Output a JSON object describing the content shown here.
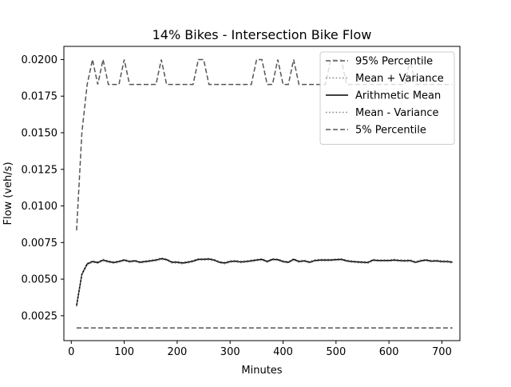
{
  "chart_data": {
    "type": "line",
    "title": "14% Bikes - Intersection Bike Flow",
    "xlabel": "Minutes",
    "ylabel": "Flow (veh/s)",
    "xlim": [
      -14,
      734
    ],
    "ylim": [
      0.0008,
      0.0209
    ],
    "x_ticks": [
      0,
      100,
      200,
      300,
      400,
      500,
      600,
      700
    ],
    "y_ticks": [
      0.0025,
      0.005,
      0.0075,
      0.01,
      0.0125,
      0.015,
      0.0175,
      0.02
    ],
    "x_tick_labels": [
      "0",
      "100",
      "200",
      "300",
      "400",
      "500",
      "600",
      "700"
    ],
    "y_tick_labels": [
      "0.0025",
      "0.0050",
      "0.0075",
      "0.0100",
      "0.0125",
      "0.0150",
      "0.0175",
      "0.0200"
    ],
    "grid": false,
    "legend_position": "top-right",
    "x": [
      10,
      20,
      30,
      40,
      50,
      60,
      70,
      80,
      90,
      100,
      110,
      120,
      130,
      140,
      150,
      160,
      170,
      180,
      190,
      200,
      210,
      220,
      230,
      240,
      250,
      260,
      270,
      280,
      290,
      300,
      310,
      320,
      330,
      340,
      350,
      360,
      370,
      380,
      390,
      400,
      410,
      420,
      430,
      440,
      450,
      460,
      470,
      480,
      490,
      500,
      510,
      520,
      530,
      540,
      550,
      560,
      570,
      580,
      590,
      600,
      610,
      620,
      630,
      640,
      650,
      660,
      670,
      680,
      690,
      700,
      710,
      720
    ],
    "series": [
      {
        "name": "95% Percentile",
        "style": "dashed",
        "color": "#555555",
        "values": [
          0.00833,
          0.015,
          0.0183,
          0.02,
          0.0183,
          0.02,
          0.0183,
          0.0183,
          0.0183,
          0.02,
          0.0183,
          0.0183,
          0.0183,
          0.0183,
          0.0183,
          0.0183,
          0.02,
          0.0183,
          0.0183,
          0.0183,
          0.0183,
          0.0183,
          0.0183,
          0.02,
          0.02,
          0.0183,
          0.0183,
          0.0183,
          0.0183,
          0.0183,
          0.0183,
          0.0183,
          0.0183,
          0.0183,
          0.02,
          0.02,
          0.0183,
          0.0183,
          0.02,
          0.0183,
          0.0183,
          0.02,
          0.0183,
          0.0183,
          0.0183,
          0.0183,
          0.0183,
          0.0183,
          0.02,
          0.02,
          0.02,
          0.0183,
          0.0183,
          0.0183,
          0.0183,
          0.0183,
          0.0183,
          0.0183,
          0.0183,
          0.0183,
          0.0183,
          0.0183,
          0.0183,
          0.02,
          0.0183,
          0.0183,
          0.0183,
          0.0183,
          0.0183,
          0.0183,
          0.0183,
          0.0183
        ]
      },
      {
        "name": "Mean + Variance",
        "style": "dotted",
        "color": "#888888",
        "values": [
          0.00323,
          0.00538,
          0.00608,
          0.00625,
          0.00618,
          0.00635,
          0.00625,
          0.00618,
          0.00625,
          0.00635,
          0.00625,
          0.0063,
          0.0062,
          0.00625,
          0.0063,
          0.00635,
          0.00645,
          0.00638,
          0.0062,
          0.0062,
          0.00615,
          0.0062,
          0.00628,
          0.0064,
          0.0064,
          0.00642,
          0.00635,
          0.0062,
          0.00615,
          0.00625,
          0.00628,
          0.00622,
          0.00625,
          0.0063,
          0.00635,
          0.0064,
          0.00625,
          0.0064,
          0.00638,
          0.00625,
          0.0062,
          0.0064,
          0.00625,
          0.0063,
          0.0062,
          0.00632,
          0.00635,
          0.00635,
          0.00635,
          0.00638,
          0.0064,
          0.0063,
          0.00625,
          0.00622,
          0.0062,
          0.00618,
          0.00635,
          0.00632,
          0.00632,
          0.00632,
          0.00635,
          0.00632,
          0.0063,
          0.00632,
          0.0062,
          0.0063,
          0.00635,
          0.00628,
          0.0063,
          0.00625,
          0.00625,
          0.0062
        ]
      },
      {
        "name": "Arithmetic Mean",
        "style": "solid",
        "color": "#000000",
        "values": [
          0.00318,
          0.00533,
          0.00603,
          0.0062,
          0.00613,
          0.0063,
          0.0062,
          0.00613,
          0.0062,
          0.0063,
          0.0062,
          0.00625,
          0.00615,
          0.0062,
          0.00625,
          0.0063,
          0.0064,
          0.00633,
          0.00615,
          0.00615,
          0.0061,
          0.00615,
          0.00623,
          0.00635,
          0.00635,
          0.00637,
          0.0063,
          0.00615,
          0.0061,
          0.0062,
          0.00623,
          0.00617,
          0.0062,
          0.00625,
          0.0063,
          0.00635,
          0.0062,
          0.00635,
          0.00633,
          0.0062,
          0.00615,
          0.00635,
          0.0062,
          0.00625,
          0.00615,
          0.00627,
          0.0063,
          0.0063,
          0.0063,
          0.00633,
          0.00635,
          0.00625,
          0.0062,
          0.00617,
          0.00615,
          0.00613,
          0.0063,
          0.00627,
          0.00627,
          0.00627,
          0.0063,
          0.00627,
          0.00625,
          0.00627,
          0.00615,
          0.00625,
          0.0063,
          0.00623,
          0.00625,
          0.0062,
          0.0062,
          0.00615
        ]
      },
      {
        "name": "Mean - Variance",
        "style": "dotted",
        "color": "#888888",
        "values": [
          0.00313,
          0.00528,
          0.00598,
          0.00615,
          0.00608,
          0.00625,
          0.00615,
          0.00608,
          0.00615,
          0.00625,
          0.00615,
          0.0062,
          0.0061,
          0.00615,
          0.0062,
          0.00625,
          0.00635,
          0.00628,
          0.0061,
          0.0061,
          0.00605,
          0.0061,
          0.00618,
          0.0063,
          0.0063,
          0.00632,
          0.00625,
          0.0061,
          0.00605,
          0.00615,
          0.00618,
          0.00612,
          0.00615,
          0.0062,
          0.00625,
          0.0063,
          0.00615,
          0.0063,
          0.00628,
          0.00615,
          0.0061,
          0.0063,
          0.00615,
          0.0062,
          0.0061,
          0.00622,
          0.00625,
          0.00625,
          0.00625,
          0.00628,
          0.0063,
          0.0062,
          0.00615,
          0.00612,
          0.0061,
          0.00608,
          0.00625,
          0.00622,
          0.00622,
          0.00622,
          0.00625,
          0.00622,
          0.0062,
          0.00622,
          0.0061,
          0.0062,
          0.00625,
          0.00618,
          0.0062,
          0.00615,
          0.00615,
          0.0061
        ]
      },
      {
        "name": "5% Percentile",
        "style": "dashed",
        "color": "#555555",
        "values": [
          0.00167,
          0.00167,
          0.00167,
          0.00167,
          0.00167,
          0.00167,
          0.00167,
          0.00167,
          0.00167,
          0.00167,
          0.00167,
          0.00167,
          0.00167,
          0.00167,
          0.00167,
          0.00167,
          0.00167,
          0.00167,
          0.00167,
          0.00167,
          0.00167,
          0.00167,
          0.00167,
          0.00167,
          0.00167,
          0.00167,
          0.00167,
          0.00167,
          0.00167,
          0.00167,
          0.00167,
          0.00167,
          0.00167,
          0.00167,
          0.00167,
          0.00167,
          0.00167,
          0.00167,
          0.00167,
          0.00167,
          0.00167,
          0.00167,
          0.00167,
          0.00167,
          0.00167,
          0.00167,
          0.00167,
          0.00167,
          0.00167,
          0.00167,
          0.00167,
          0.00167,
          0.00167,
          0.00167,
          0.00167,
          0.00167,
          0.00167,
          0.00167,
          0.00167,
          0.00167,
          0.00167,
          0.00167,
          0.00167,
          0.00167,
          0.00167,
          0.00167,
          0.00167,
          0.00167,
          0.00167,
          0.00167,
          0.00167,
          0.00167
        ]
      }
    ]
  }
}
